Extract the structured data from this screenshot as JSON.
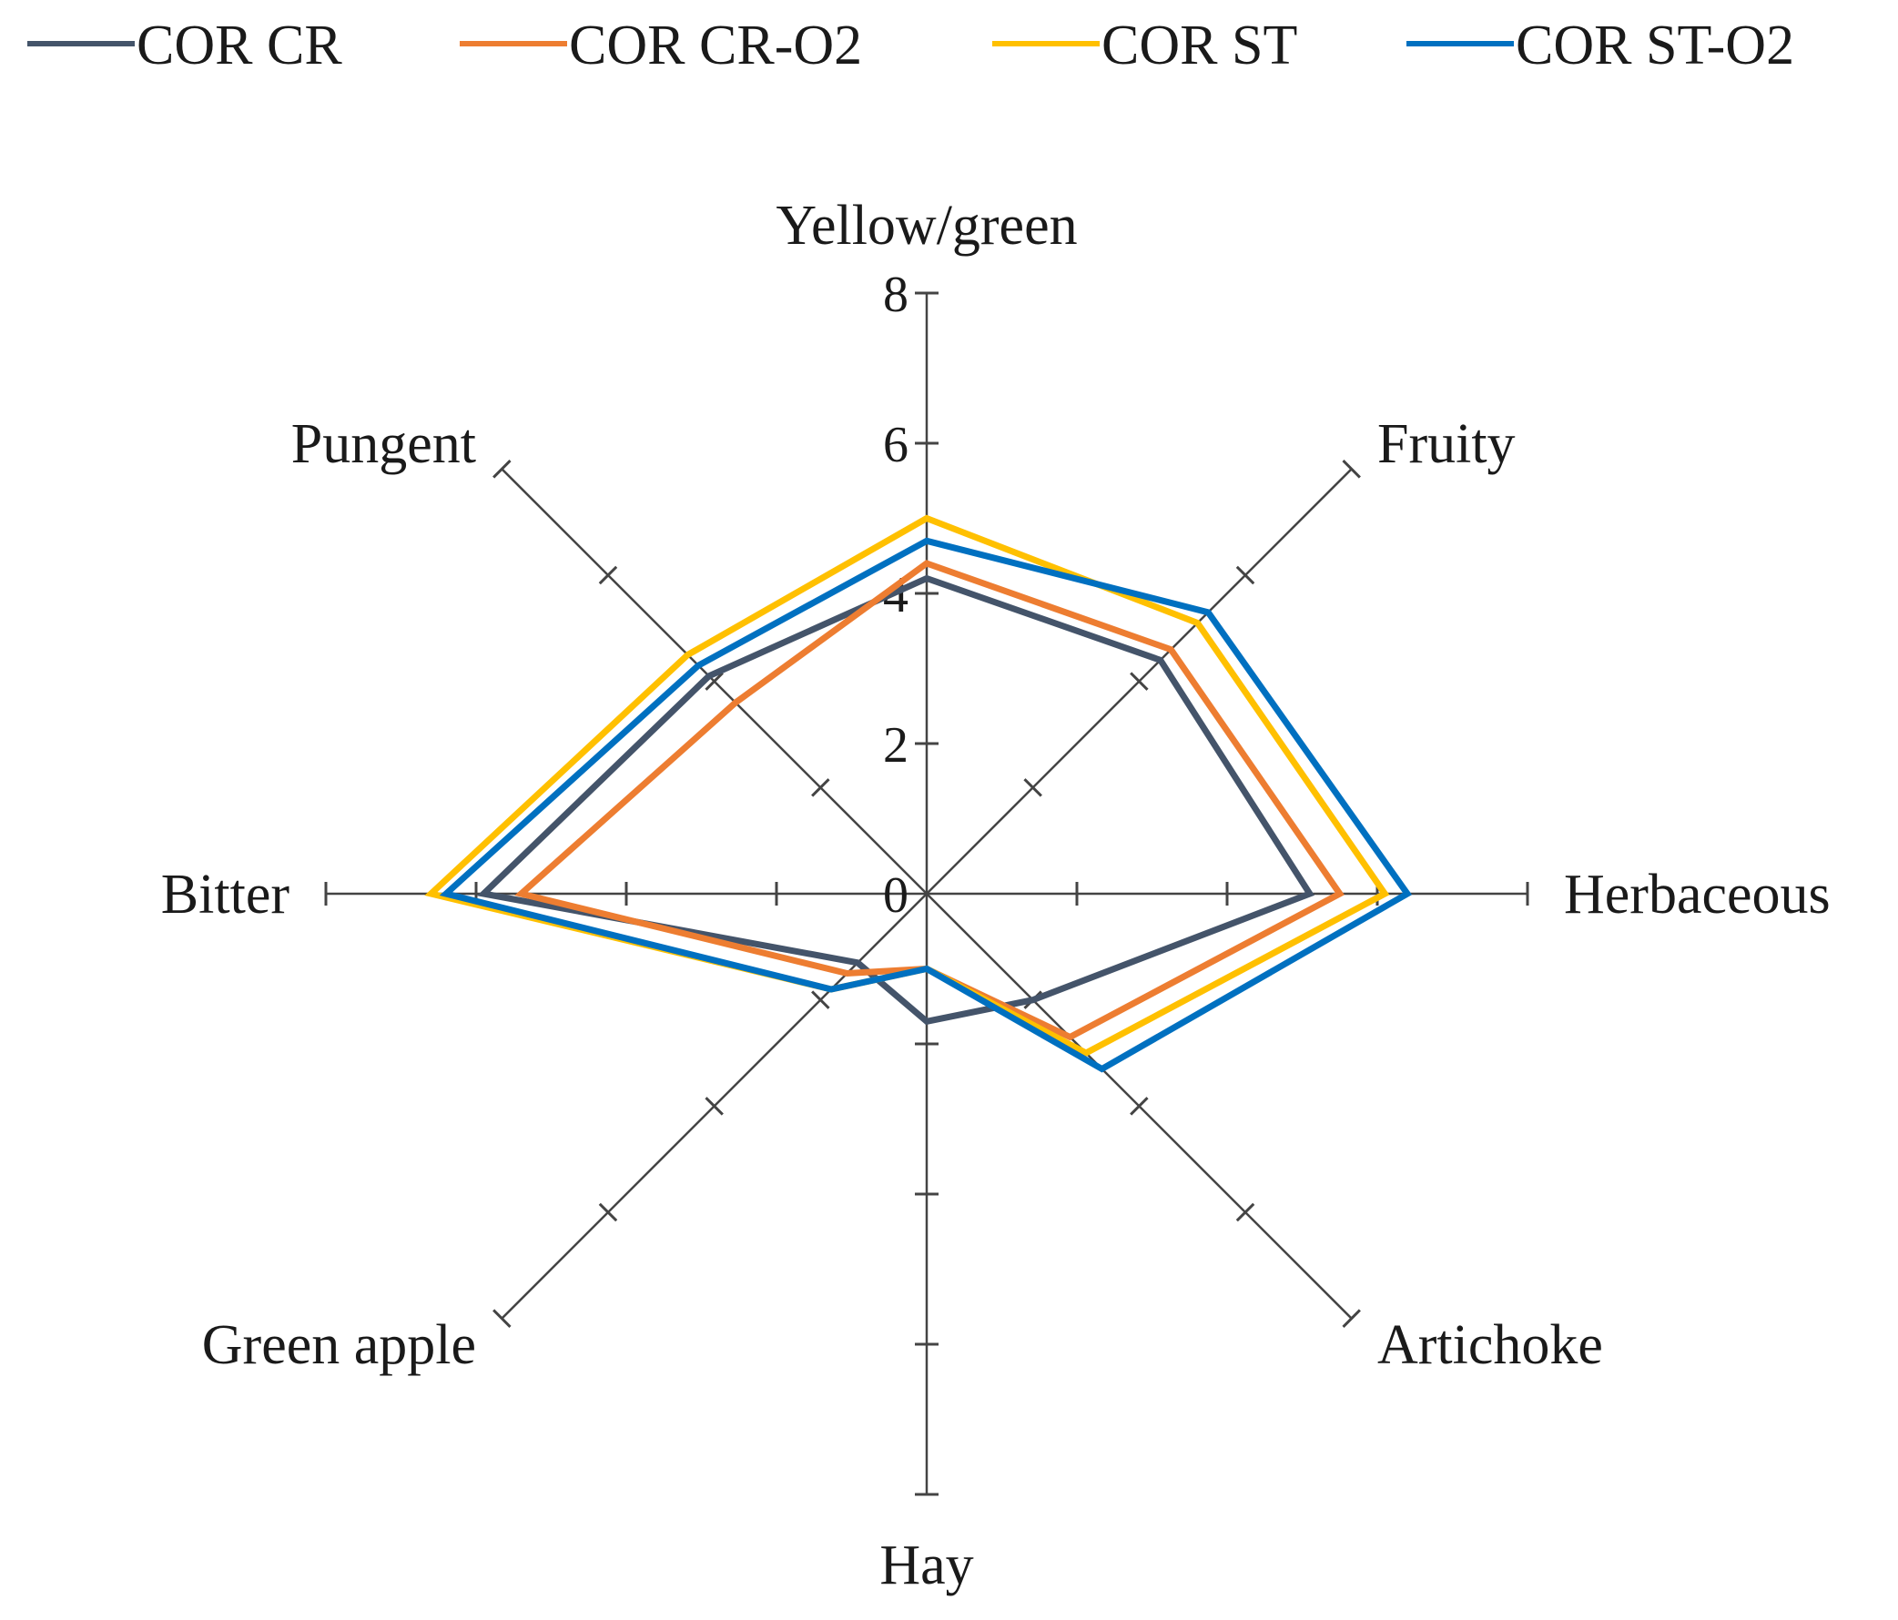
{
  "chart_data": {
    "type": "radar",
    "title": "",
    "axes": [
      "Yellow/green",
      "Fruity",
      "Herbaceous",
      "Artichoke",
      "Hay",
      "Green apple",
      "Bitter",
      "Pungent"
    ],
    "tick_labels": [
      "0",
      "2",
      "4",
      "6",
      "8"
    ],
    "ylim": [
      0,
      8
    ],
    "grid": false,
    "legend_position": "top",
    "series": [
      {
        "name": "COR CR",
        "color": "#44546A",
        "values": [
          4.2,
          4.4,
          5.1,
          2.0,
          1.7,
          1.3,
          5.9,
          4.1
        ]
      },
      {
        "name": "COR CR-O2",
        "color": "#ED7D31",
        "values": [
          4.4,
          4.6,
          5.5,
          2.7,
          1.0,
          1.5,
          5.4,
          3.6
        ]
      },
      {
        "name": "COR ST",
        "color": "#FFC000",
        "values": [
          5.0,
          5.1,
          6.1,
          3.0,
          1.0,
          1.8,
          6.6,
          4.5
        ]
      },
      {
        "name": "COR ST-O2",
        "color": "#0070C0",
        "values": [
          4.7,
          5.3,
          6.4,
          3.3,
          1.0,
          1.8,
          6.4,
          4.3
        ]
      }
    ]
  }
}
